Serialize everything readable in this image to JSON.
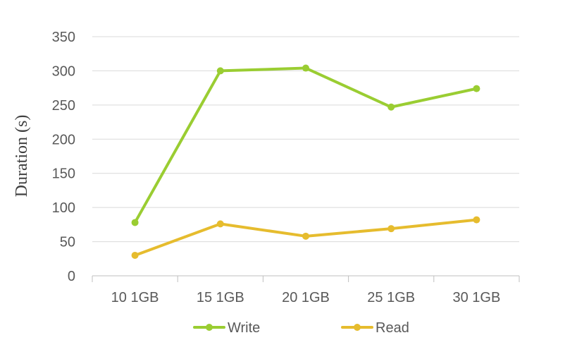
{
  "chart_data": {
    "type": "line",
    "title": "",
    "xlabel": "",
    "ylabel": "Duration (s)",
    "categories": [
      "10 1GB",
      "15 1GB",
      "20 1GB",
      "25 1GB",
      "30 1GB"
    ],
    "ylim": [
      0,
      350
    ],
    "yticks": [
      0,
      50,
      100,
      150,
      200,
      250,
      300,
      350
    ],
    "grid": true,
    "legend_position": "bottom",
    "series": [
      {
        "name": "Write",
        "color": "#9acd32",
        "values": [
          78,
          300,
          304,
          247,
          274
        ]
      },
      {
        "name": "Read",
        "color": "#e6bc2e",
        "values": [
          30,
          76,
          58,
          69,
          82
        ]
      }
    ]
  }
}
